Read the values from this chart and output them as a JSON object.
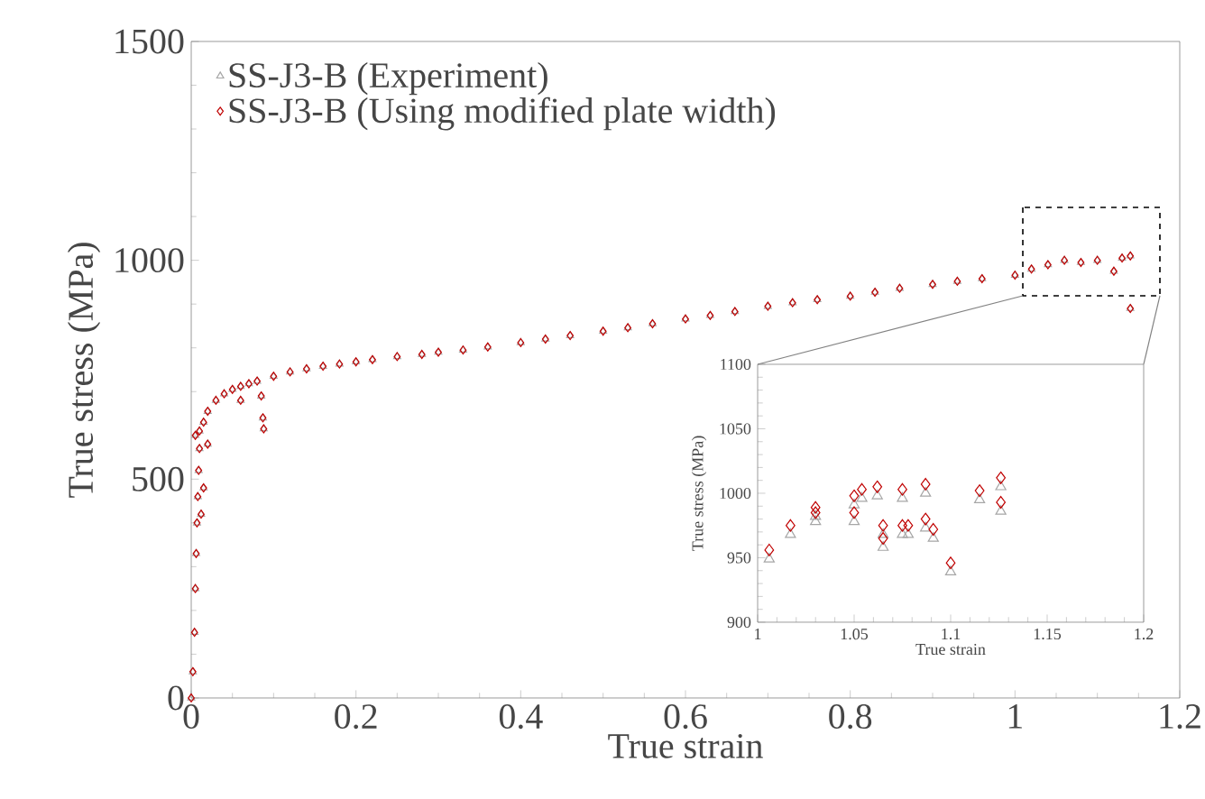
{
  "chart_data": [
    {
      "type": "scatter",
      "xlabel": "True strain",
      "ylabel": "True stress (MPa)",
      "xlim": [
        0,
        1.2
      ],
      "ylim": [
        0,
        1500
      ],
      "xticks": [
        0,
        0.2,
        0.4,
        0.6,
        0.8,
        1,
        1.2
      ],
      "yticks": [
        0,
        500,
        1000,
        1500
      ],
      "legend": "top left",
      "series": [
        {
          "name": "SS-J3-B (Experiment)",
          "color": "#a6a6a6",
          "marker": "triangle",
          "x": [
            0,
            0.002,
            0.004,
            0.005,
            0.006,
            0.007,
            0.008,
            0.009,
            0.01,
            0.005,
            0.015,
            0.012,
            0.01,
            0.015,
            0.02,
            0.03,
            0.04,
            0.05,
            0.06,
            0.07,
            0.08,
            0.1,
            0.12,
            0.14,
            0.16,
            0.18,
            0.2,
            0.22,
            0.25,
            0.28,
            0.3,
            0.33,
            0.36,
            0.4,
            0.43,
            0.46,
            0.5,
            0.53,
            0.56,
            0.6,
            0.63,
            0.66,
            0.7,
            0.73,
            0.76,
            0.8,
            0.83,
            0.86,
            0.9,
            0.93,
            0.96,
            1.0,
            1.02,
            1.04,
            1.06,
            1.08,
            1.1,
            1.12,
            1.13,
            1.14,
            1.14,
            0.02,
            0.06,
            0.085,
            0.087,
            0.088
          ],
          "values": [
            0,
            60,
            150,
            250,
            330,
            400,
            460,
            520,
            570,
            600,
            480,
            420,
            610,
            630,
            655,
            680,
            695,
            705,
            712,
            718,
            724,
            735,
            745,
            752,
            758,
            763,
            768,
            773,
            780,
            785,
            790,
            795,
            802,
            812,
            820,
            828,
            838,
            846,
            855,
            866,
            874,
            883,
            895,
            903,
            910,
            918,
            927,
            936,
            945,
            952,
            958,
            966,
            980,
            990,
            1000,
            995,
            1000,
            975,
            1005,
            1010,
            890,
            580,
            680,
            690,
            640,
            615
          ]
        },
        {
          "name": "SS-J3-B (Using modified plate width)",
          "color": "#c00000",
          "marker": "diamond",
          "x": [
            0,
            0.002,
            0.004,
            0.005,
            0.006,
            0.007,
            0.008,
            0.009,
            0.01,
            0.005,
            0.015,
            0.012,
            0.01,
            0.015,
            0.02,
            0.03,
            0.04,
            0.05,
            0.06,
            0.07,
            0.08,
            0.1,
            0.12,
            0.14,
            0.16,
            0.18,
            0.2,
            0.22,
            0.25,
            0.28,
            0.3,
            0.33,
            0.36,
            0.4,
            0.43,
            0.46,
            0.5,
            0.53,
            0.56,
            0.6,
            0.63,
            0.66,
            0.7,
            0.73,
            0.76,
            0.8,
            0.83,
            0.86,
            0.9,
            0.93,
            0.96,
            1.0,
            1.02,
            1.04,
            1.06,
            1.08,
            1.1,
            1.12,
            1.13,
            1.14,
            1.14,
            0.02,
            0.06,
            0.085,
            0.087,
            0.088
          ],
          "values": [
            0,
            60,
            150,
            250,
            330,
            400,
            460,
            520,
            570,
            600,
            480,
            420,
            610,
            630,
            655,
            680,
            695,
            705,
            712,
            718,
            724,
            735,
            745,
            752,
            758,
            763,
            768,
            773,
            780,
            785,
            790,
            795,
            802,
            812,
            820,
            828,
            838,
            846,
            855,
            866,
            874,
            883,
            895,
            903,
            910,
            918,
            927,
            936,
            945,
            952,
            958,
            966,
            980,
            990,
            1000,
            995,
            1000,
            975,
            1005,
            1010,
            890,
            580,
            680,
            690,
            640,
            615
          ]
        }
      ]
    },
    {
      "type": "scatter",
      "xlabel": "True strain",
      "ylabel": "True stress (MPa)",
      "xlim": [
        1,
        1.2
      ],
      "ylim": [
        900,
        1100
      ],
      "xticks": [
        1,
        1.05,
        1.1,
        1.15,
        1.2
      ],
      "yticks": [
        900,
        950,
        1000,
        1050,
        1100
      ],
      "series": [
        {
          "color": "#a6a6a6",
          "marker": "triangle",
          "x": [
            1.006,
            1.017,
            1.03,
            1.03,
            1.05,
            1.05,
            1.054,
            1.062,
            1.065,
            1.065,
            1.075,
            1.075,
            1.078,
            1.087,
            1.087,
            1.091,
            1.1,
            1.115,
            1.126,
            1.126
          ],
          "values": [
            949,
            968,
            982,
            978,
            991,
            978,
            996,
            998,
            968,
            958,
            996,
            968,
            968,
            1000,
            973,
            965,
            939,
            995,
            1005,
            986
          ]
        },
        {
          "color": "#c00000",
          "marker": "diamond",
          "x": [
            1.006,
            1.017,
            1.03,
            1.03,
            1.05,
            1.05,
            1.054,
            1.062,
            1.065,
            1.065,
            1.075,
            1.075,
            1.078,
            1.087,
            1.087,
            1.091,
            1.1,
            1.115,
            1.126,
            1.126
          ],
          "values": [
            956,
            975,
            989,
            985,
            998,
            985,
            1003,
            1005,
            975,
            965,
            1003,
            975,
            975,
            1007,
            980,
            972,
            946,
            1002,
            1012,
            993
          ]
        }
      ]
    }
  ]
}
